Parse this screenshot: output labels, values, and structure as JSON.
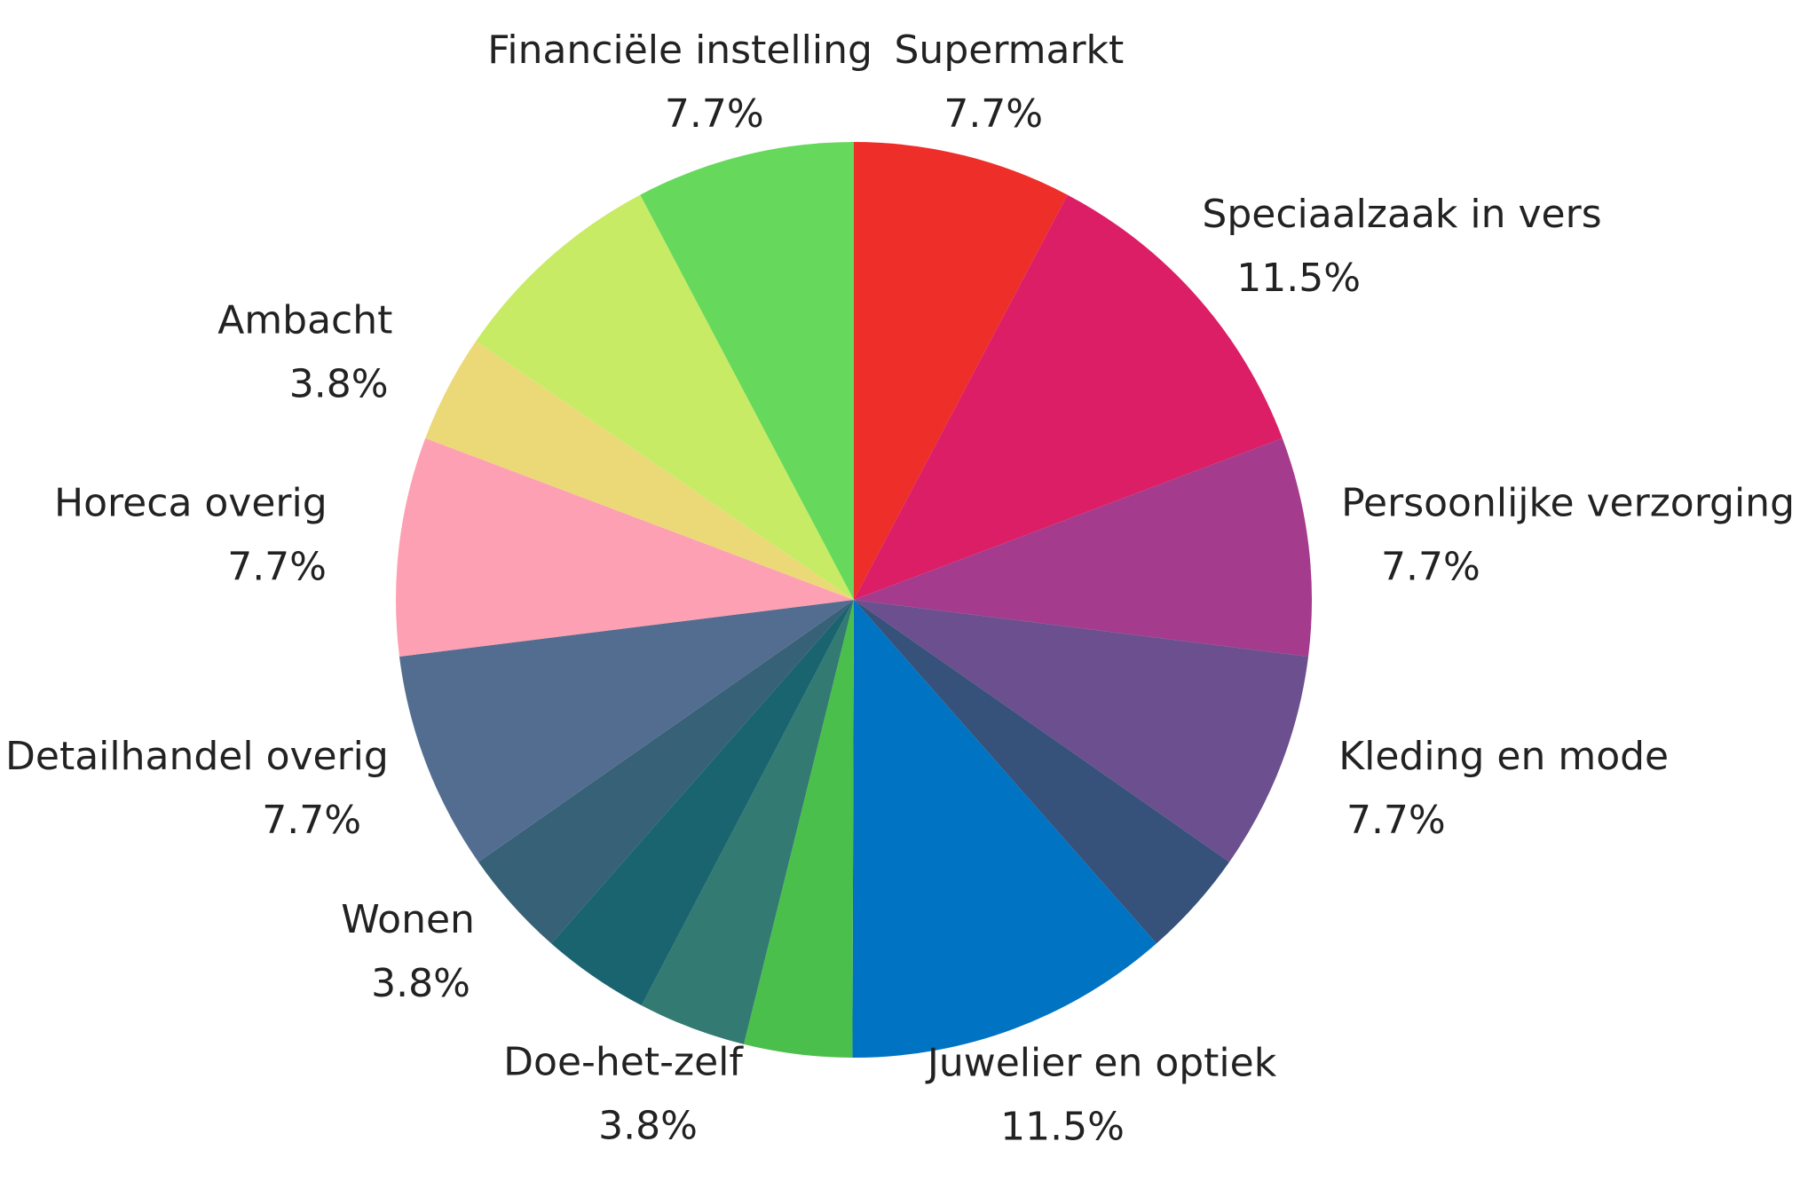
{
  "chart_data": {
    "type": "pie",
    "categories": [
      "Supermarkt",
      "Speciaalzaak in vers",
      "Persoonlijke verzorging",
      "Kleding en mode",
      null,
      "Juwelier en optiek",
      null,
      "Doe-het-zelf",
      null,
      "Wonen",
      "Detailhandel overig",
      "Horeca overig",
      "Ambacht",
      null,
      "Financiële instelling"
    ],
    "values": [
      7.7,
      11.5,
      7.7,
      7.7,
      3.8,
      11.5,
      3.8,
      3.8,
      3.8,
      3.8,
      7.7,
      7.7,
      3.8,
      7.7,
      7.7
    ],
    "value_labels": [
      "7.7%",
      "11.5%",
      "7.7%",
      "7.7%",
      null,
      "11.5%",
      null,
      "3.8%",
      null,
      "3.8%",
      "7.7%",
      "7.7%",
      "3.8%",
      null,
      "7.7%"
    ],
    "colors": [
      "#ee2e29",
      "#db1e66",
      "#a43b8c",
      "#6b4f8e",
      "#36517a",
      "#0073c3",
      "#4bbf4c",
      "#327a72",
      "#19646f",
      "#366176",
      "#536d91",
      "#fea0b3",
      "#ebd978",
      "#c8eb66",
      "#66d95c"
    ]
  }
}
